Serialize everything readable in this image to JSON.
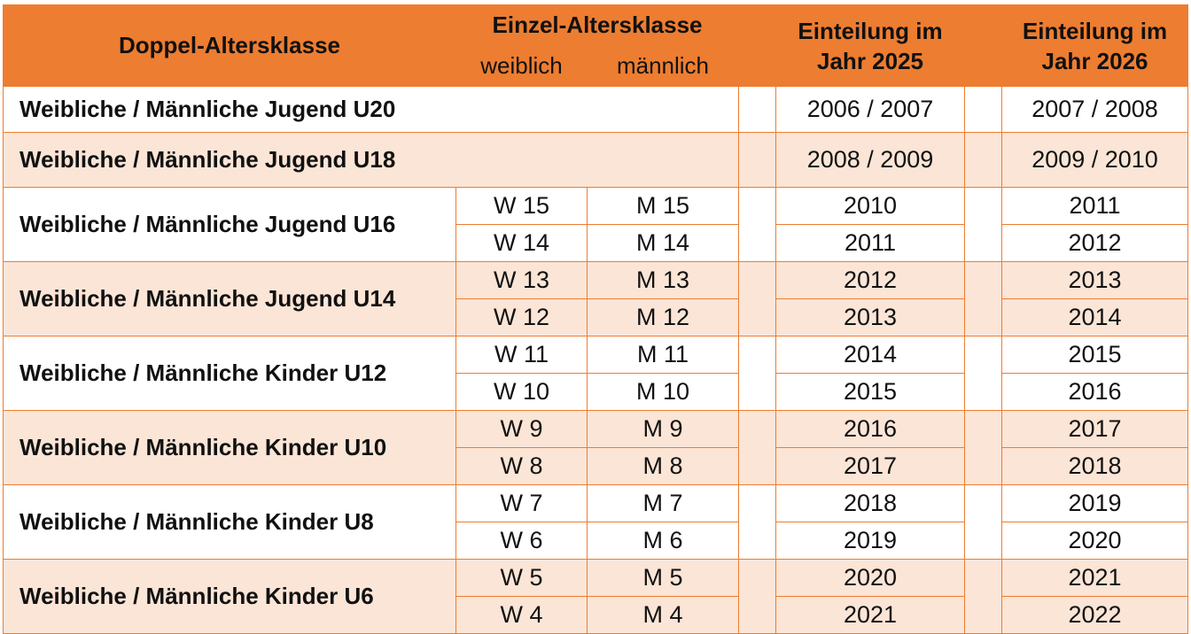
{
  "header": {
    "doppel": "Doppel-Altersklasse",
    "einzel": "Einzel-Altersklasse",
    "weiblich": "weiblich",
    "maennlich": "männlich",
    "year_2025": "Einteilung im Jahr 2025",
    "year_2026": "Einteilung im Jahr 2026"
  },
  "colors": {
    "accent": "#ed7d31",
    "shade": "#fbe5d6"
  },
  "groups": [
    {
      "name": "Weibliche / Männliche Jugend U20",
      "y2025": "2006 / 2007",
      "y2026": "2007 / 2008"
    },
    {
      "name": "Weibliche / Männliche Jugend U18",
      "y2025": "2008 / 2009",
      "y2026": "2009 / 2010"
    },
    {
      "name": "Weibliche / Männliche Jugend U16",
      "rows": [
        {
          "w": "W 15",
          "m": "M 15",
          "y2025": "2010",
          "y2026": "2011"
        },
        {
          "w": "W 14",
          "m": "M 14",
          "y2025": "2011",
          "y2026": "2012"
        }
      ]
    },
    {
      "name": "Weibliche / Männliche Jugend U14",
      "rows": [
        {
          "w": "W 13",
          "m": "M 13",
          "y2025": "2012",
          "y2026": "2013"
        },
        {
          "w": "W 12",
          "m": "M 12",
          "y2025": "2013",
          "y2026": "2014"
        }
      ]
    },
    {
      "name": "Weibliche / Männliche Kinder U12",
      "rows": [
        {
          "w": "W 11",
          "m": "M 11",
          "y2025": "2014",
          "y2026": "2015"
        },
        {
          "w": "W 10",
          "m": "M 10",
          "y2025": "2015",
          "y2026": "2016"
        }
      ]
    },
    {
      "name": "Weibliche / Männliche Kinder U10",
      "rows": [
        {
          "w": "W 9",
          "m": "M 9",
          "y2025": "2016",
          "y2026": "2017"
        },
        {
          "w": "W 8",
          "m": "M 8",
          "y2025": "2017",
          "y2026": "2018"
        }
      ]
    },
    {
      "name": "Weibliche / Männliche Kinder U8",
      "rows": [
        {
          "w": "W 7",
          "m": "M 7",
          "y2025": "2018",
          "y2026": "2019"
        },
        {
          "w": "W 6",
          "m": "M 6",
          "y2025": "2019",
          "y2026": "2020"
        }
      ]
    },
    {
      "name": "Weibliche / Männliche Kinder U6",
      "rows": [
        {
          "w": "W 5",
          "m": "M 5",
          "y2025": "2020",
          "y2026": "2021"
        },
        {
          "w": "W 4",
          "m": "M 4",
          "y2025": "2021",
          "y2026": "2022"
        }
      ]
    }
  ]
}
